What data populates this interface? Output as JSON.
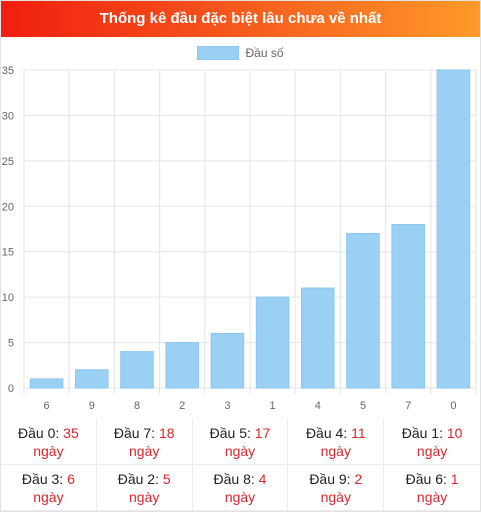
{
  "header": {
    "title": "Thống kê đầu đặc biệt lâu chưa về nhất"
  },
  "colors": {
    "bar": "#9bd0f5",
    "bar_border": "#8ac6f1",
    "accent": "#e0242a",
    "grid": "#e5e5e5"
  },
  "chart_data": {
    "type": "bar",
    "title": "",
    "xlabel": "",
    "ylabel": "",
    "categories": [
      "6",
      "9",
      "8",
      "2",
      "3",
      "1",
      "4",
      "5",
      "7",
      "0"
    ],
    "series": [
      {
        "name": "Đầu số",
        "values": [
          1,
          2,
          4,
          5,
          6,
          10,
          11,
          17,
          18,
          35
        ]
      }
    ],
    "ylim": [
      0,
      35
    ],
    "yticks": [
      "0",
      "5",
      "10",
      "15",
      "20",
      "25",
      "30",
      "35"
    ],
    "grid": true,
    "legend": "top-center"
  },
  "stats": [
    {
      "label": "Đầu 0:",
      "value": "35",
      "unit": "ngày"
    },
    {
      "label": "Đầu 7:",
      "value": "18",
      "unit": "ngày"
    },
    {
      "label": "Đầu 5:",
      "value": "17",
      "unit": "ngày"
    },
    {
      "label": "Đầu 4:",
      "value": "11",
      "unit": "ngày"
    },
    {
      "label": "Đầu 1:",
      "value": "10",
      "unit": "ngày"
    },
    {
      "label": "Đầu 3:",
      "value": "6",
      "unit": "ngày"
    },
    {
      "label": "Đầu 2:",
      "value": "5",
      "unit": "ngày"
    },
    {
      "label": "Đầu 8:",
      "value": "4",
      "unit": "ngày"
    },
    {
      "label": "Đầu 9:",
      "value": "2",
      "unit": "ngày"
    },
    {
      "label": "Đầu 6:",
      "value": "1",
      "unit": "ngày"
    }
  ]
}
